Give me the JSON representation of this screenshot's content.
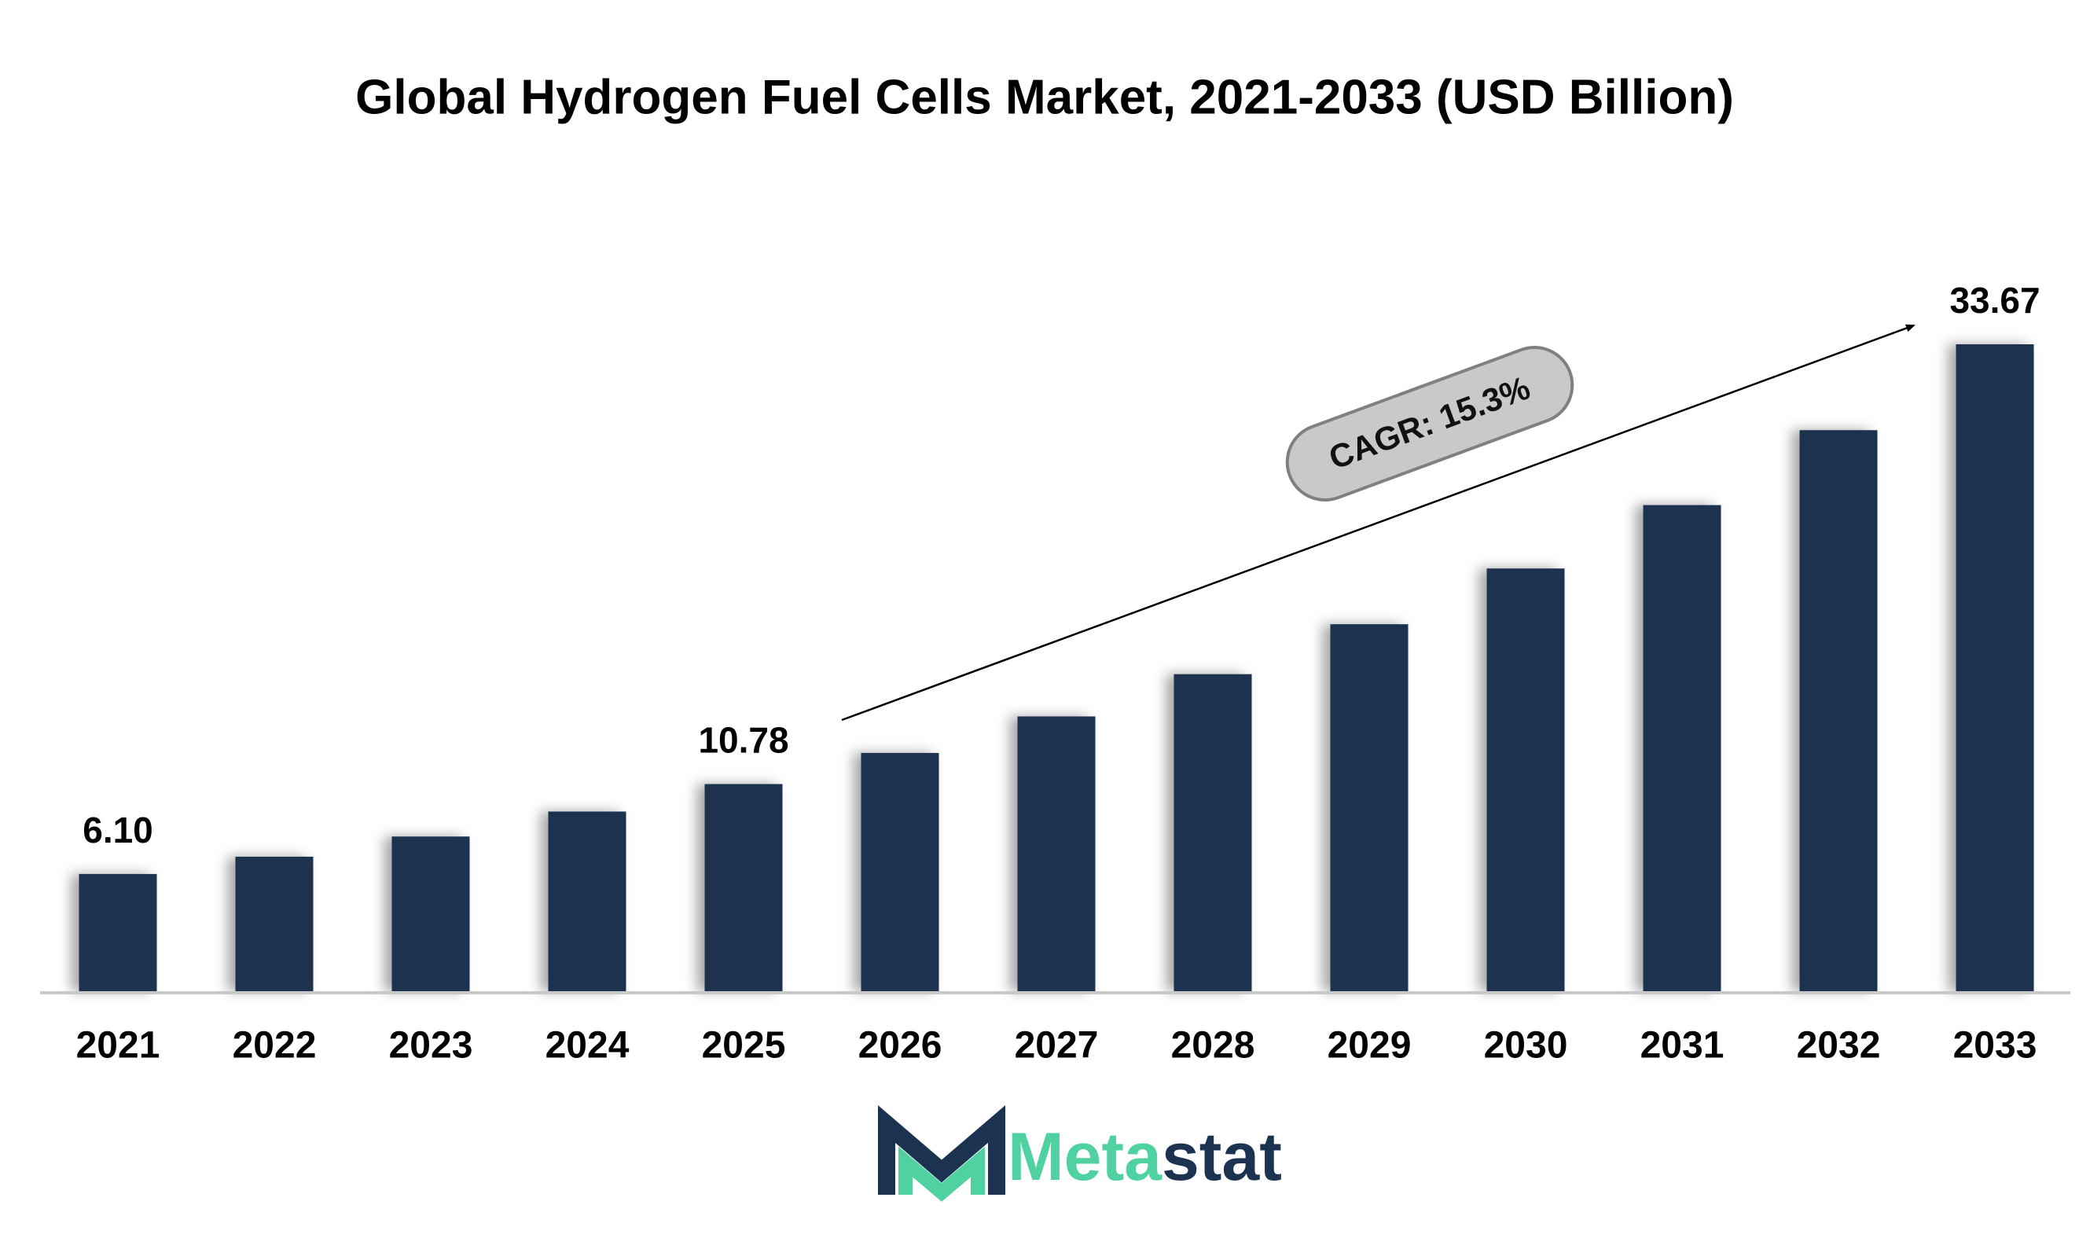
{
  "chart_data": {
    "type": "bar",
    "title": "Global Hydrogen Fuel Cells Market, 2021-2033 (USD Billion)",
    "categories": [
      "2021",
      "2022",
      "2023",
      "2024",
      "2025",
      "2026",
      "2027",
      "2028",
      "2029",
      "2030",
      "2031",
      "2032",
      "2033"
    ],
    "values": [
      6.1,
      7.0,
      8.05,
      9.35,
      10.78,
      12.4,
      14.3,
      16.5,
      19.1,
      22.0,
      25.3,
      29.2,
      33.67
    ],
    "value_labels": [
      "6.10",
      null,
      null,
      null,
      "10.78",
      null,
      null,
      null,
      null,
      null,
      null,
      null,
      "33.67"
    ],
    "color": "#1b3350",
    "annotation": "CAGR: 15.3%",
    "logo": [
      "Meta",
      "stat"
    ]
  }
}
